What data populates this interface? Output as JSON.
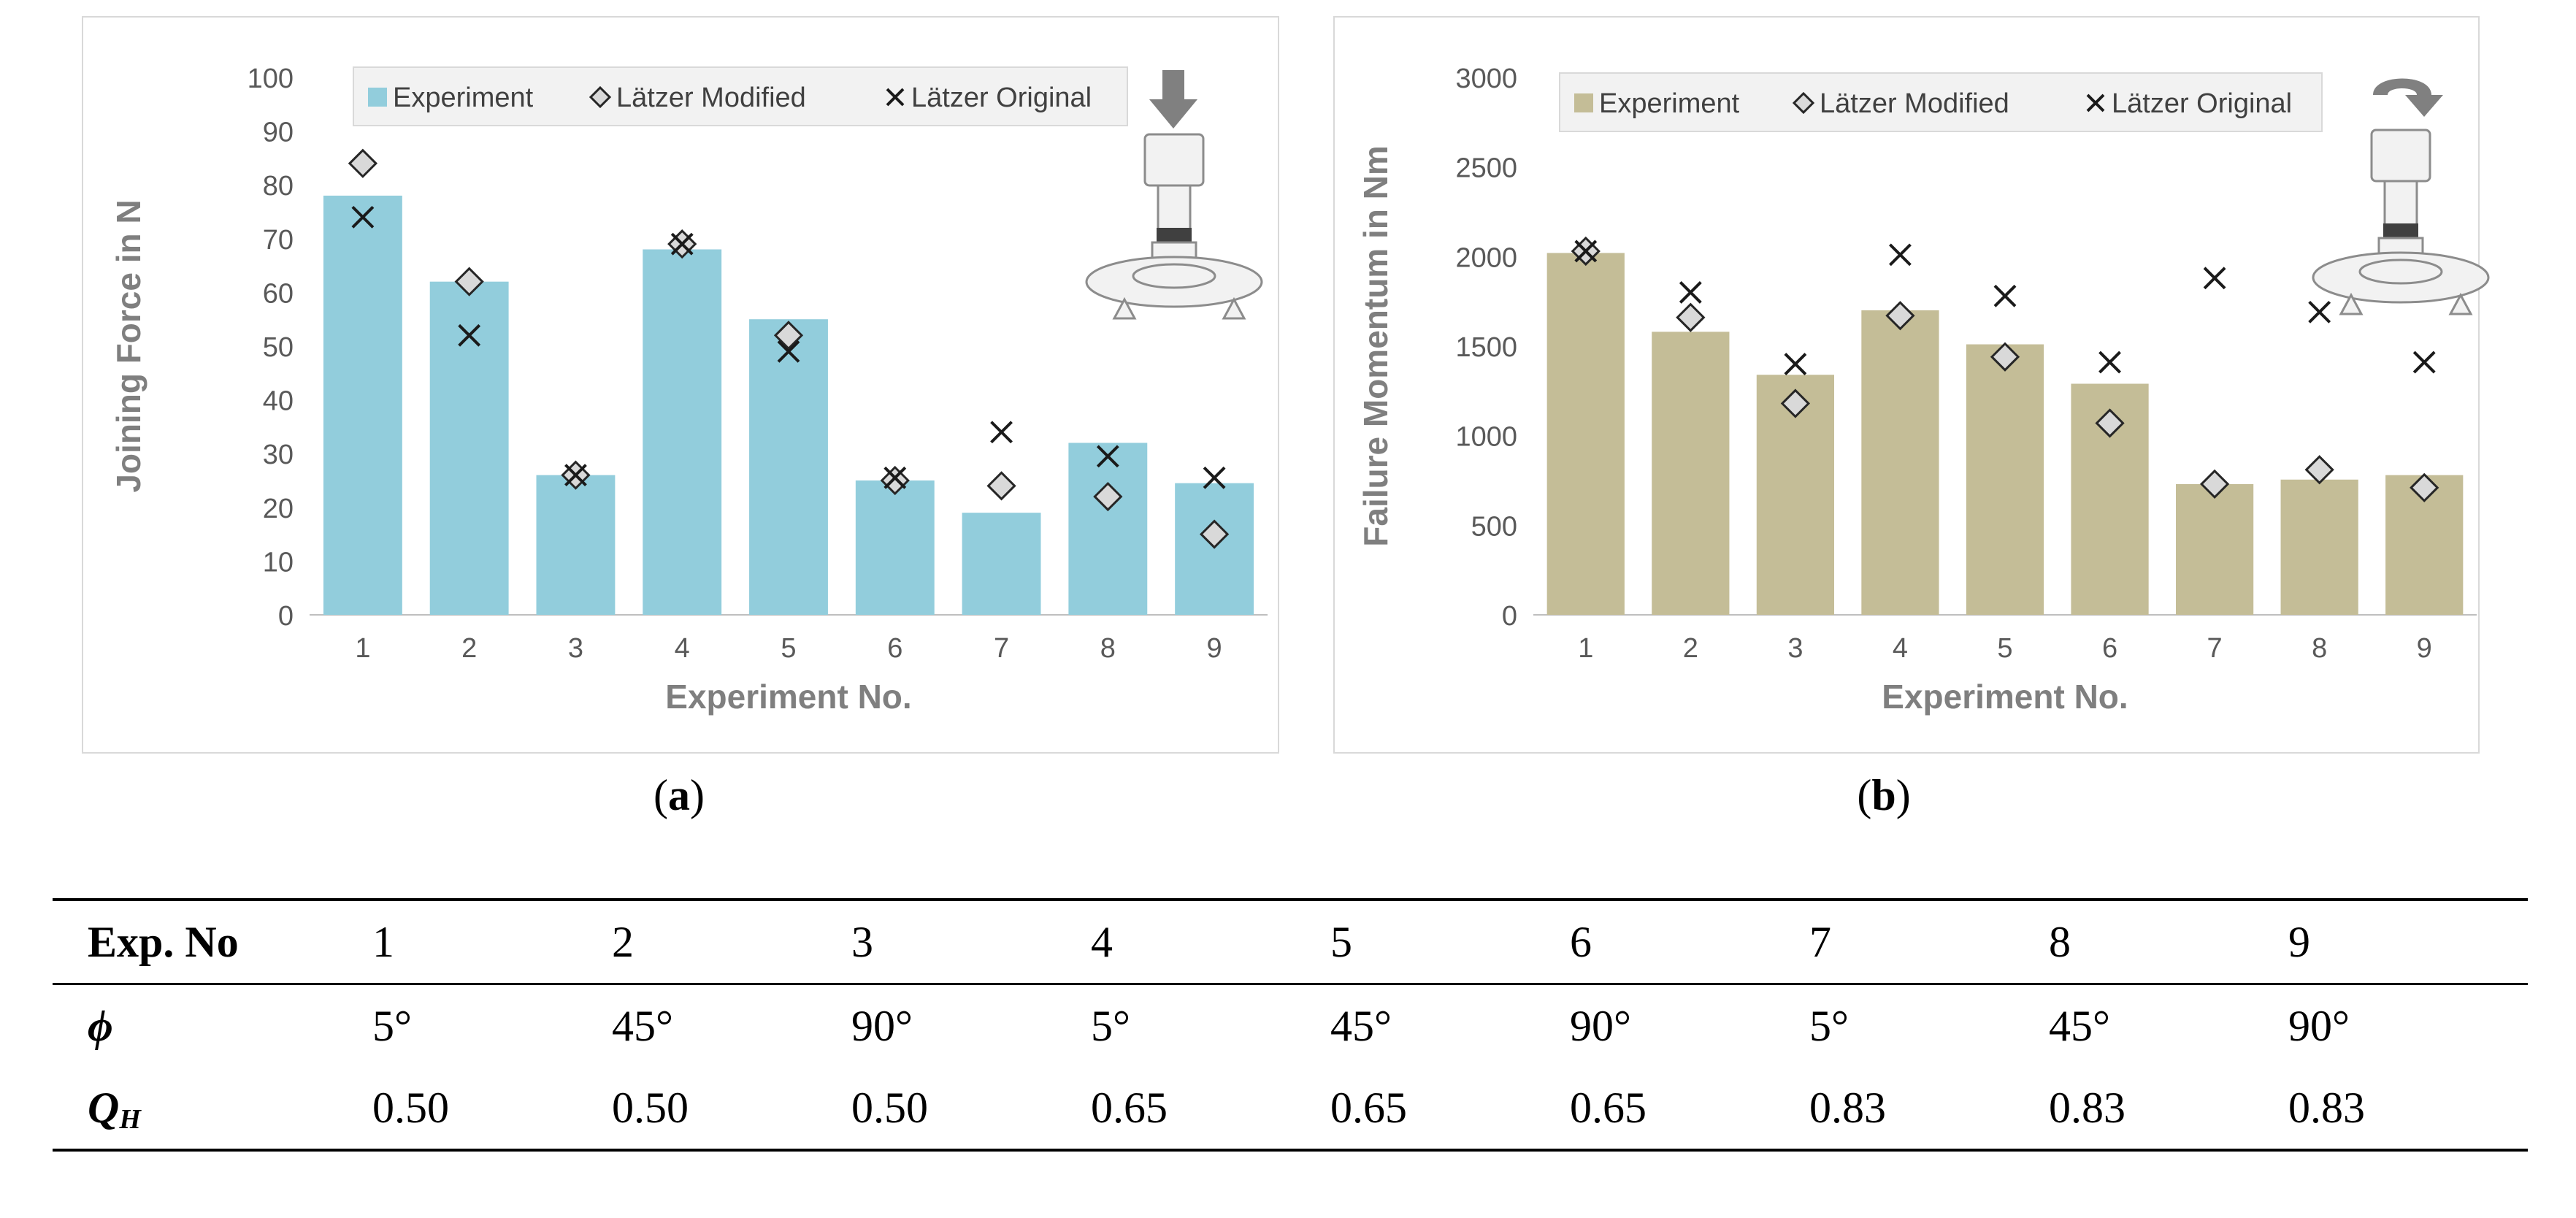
{
  "charts": {
    "a": {
      "caption_letter": "a",
      "ylabel": "Joining Force in N",
      "xlabel": "Experiment No.",
      "legend": {
        "experiment": "Experiment",
        "modified": "Lätzer Modified",
        "original": "Lätzer Original"
      }
    },
    "b": {
      "caption_letter": "b",
      "ylabel": "Failure Momentum in Nm",
      "xlabel": "Experiment No.",
      "legend": {
        "experiment": "Experiment",
        "modified": "Lätzer Modified",
        "original": "Lätzer Original"
      }
    }
  },
  "chart_data": [
    {
      "type": "bar",
      "title": "",
      "xlabel": "Experiment No.",
      "ylabel": "Joining Force in N",
      "categories": [
        "1",
        "2",
        "3",
        "4",
        "5",
        "6",
        "7",
        "8",
        "9"
      ],
      "ylim": [
        0,
        100
      ],
      "yticks": [
        0,
        10,
        20,
        30,
        40,
        50,
        60,
        70,
        80,
        90,
        100
      ],
      "bar_color": "#92cddc",
      "series": [
        {
          "name": "Experiment",
          "kind": "bar",
          "values": [
            78,
            62,
            26,
            68,
            55,
            25,
            19,
            32,
            24.5
          ]
        },
        {
          "name": "Lätzer Modified",
          "kind": "diamond",
          "values": [
            84,
            62,
            26,
            69,
            52,
            25,
            24,
            22,
            15
          ]
        },
        {
          "name": "Lätzer Original",
          "kind": "cross",
          "values": [
            74,
            52,
            26,
            69,
            49,
            25.5,
            34,
            29.5,
            25.5
          ]
        }
      ]
    },
    {
      "type": "bar",
      "title": "",
      "xlabel": "Experiment No.",
      "ylabel": "Failure Momentum in Nm",
      "categories": [
        "1",
        "2",
        "3",
        "4",
        "5",
        "6",
        "7",
        "8",
        "9"
      ],
      "ylim": [
        0,
        3000
      ],
      "yticks": [
        0,
        500,
        1000,
        1500,
        2000,
        2500,
        3000
      ],
      "bar_color": "#c4bd97",
      "series": [
        {
          "name": "Experiment",
          "kind": "bar",
          "values": [
            2020,
            1580,
            1340,
            1700,
            1510,
            1290,
            730,
            755,
            780
          ]
        },
        {
          "name": "Lätzer Modified",
          "kind": "diamond",
          "values": [
            2030,
            1660,
            1180,
            1670,
            1440,
            1070,
            730,
            810,
            710
          ]
        },
        {
          "name": "Lätzer Original",
          "kind": "cross",
          "values": [
            2030,
            1800,
            1400,
            2010,
            1780,
            1410,
            1880,
            1690,
            1410
          ]
        }
      ]
    }
  ],
  "table": {
    "header_label": "Exp. No",
    "phi_label": "ϕ",
    "qh_label": "Q",
    "qh_sub": "H",
    "exp_no": [
      "1",
      "2",
      "3",
      "4",
      "5",
      "6",
      "7",
      "8",
      "9"
    ],
    "phi": [
      "5°",
      "45°",
      "90°",
      "5°",
      "45°",
      "90°",
      "5°",
      "45°",
      "90°"
    ],
    "qh": [
      "0.50",
      "0.50",
      "0.50",
      "0.65",
      "0.65",
      "0.65",
      "0.83",
      "0.83",
      "0.83"
    ]
  }
}
